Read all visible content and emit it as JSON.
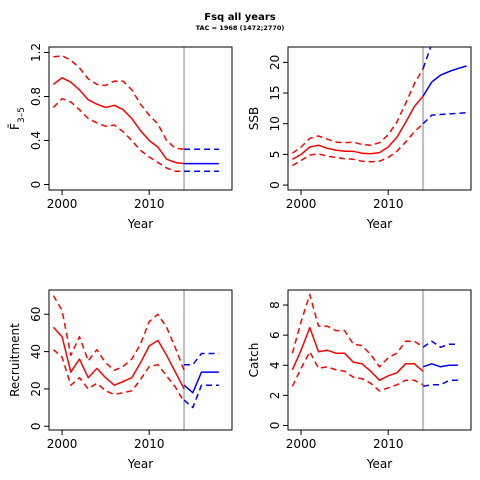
{
  "title": "Fsq all years",
  "subtitle": "TAC = 1968 (1472;2770)",
  "colors": {
    "historic": "#ff0000",
    "projection": "#0000ff",
    "marker": "#bebebe"
  },
  "chart_data": [
    {
      "type": "line",
      "ylabel": "F̄",
      "ylabel_sub": "3–5",
      "xlabel": "Year",
      "xlim": [
        1998.5,
        2019.5
      ],
      "ylim": [
        -0.05,
        1.25
      ],
      "xticks": [
        2000,
        2010
      ],
      "yticks": [
        0,
        0.4,
        0.8,
        1.2
      ],
      "ytick_labels": [
        "0",
        "0.4",
        "0.8",
        "1.2"
      ],
      "marker_year": 2014,
      "series": [
        {
          "role": "historic-median",
          "x": [
            1999,
            2000,
            2001,
            2002,
            2003,
            2004,
            2005,
            2006,
            2007,
            2008,
            2009,
            2010,
            2011,
            2012,
            2013,
            2014
          ],
          "values": [
            0.91,
            0.97,
            0.93,
            0.86,
            0.77,
            0.73,
            0.7,
            0.72,
            0.68,
            0.6,
            0.49,
            0.4,
            0.34,
            0.23,
            0.2,
            0.19
          ]
        },
        {
          "role": "historic-upper",
          "x": [
            1999,
            2000,
            2001,
            2002,
            2003,
            2004,
            2005,
            2006,
            2007,
            2008,
            2009,
            2010,
            2011,
            2012,
            2013,
            2014
          ],
          "values": [
            1.16,
            1.17,
            1.13,
            1.06,
            0.96,
            0.91,
            0.9,
            0.94,
            0.94,
            0.86,
            0.73,
            0.63,
            0.55,
            0.4,
            0.33,
            0.32
          ]
        },
        {
          "role": "historic-lower",
          "x": [
            1999,
            2000,
            2001,
            2002,
            2003,
            2004,
            2005,
            2006,
            2007,
            2008,
            2009,
            2010,
            2011,
            2012,
            2013,
            2014
          ],
          "values": [
            0.7,
            0.78,
            0.75,
            0.68,
            0.6,
            0.56,
            0.53,
            0.54,
            0.48,
            0.4,
            0.31,
            0.25,
            0.2,
            0.15,
            0.12,
            0.12
          ]
        },
        {
          "role": "projection-median",
          "x": [
            2014,
            2015,
            2016,
            2017,
            2018
          ],
          "values": [
            0.19,
            0.19,
            0.19,
            0.19,
            0.19
          ]
        },
        {
          "role": "projection-upper",
          "x": [
            2014,
            2015,
            2016,
            2017,
            2018
          ],
          "values": [
            0.32,
            0.32,
            0.32,
            0.32,
            0.32
          ]
        },
        {
          "role": "projection-lower",
          "x": [
            2014,
            2015,
            2016,
            2017,
            2018
          ],
          "values": [
            0.12,
            0.12,
            0.12,
            0.12,
            0.12
          ]
        }
      ]
    },
    {
      "type": "line",
      "ylabel": "SSB",
      "xlabel": "Year",
      "xlim": [
        1998.5,
        2019.5
      ],
      "ylim": [
        -0.8,
        22.5
      ],
      "xticks": [
        2000,
        2010
      ],
      "yticks": [
        0,
        5,
        10,
        15,
        20
      ],
      "ytick_labels": [
        "0",
        "5",
        "10",
        "15",
        "20"
      ],
      "marker_year": 2014,
      "series": [
        {
          "role": "historic-median",
          "x": [
            1999,
            2000,
            2001,
            2002,
            2003,
            2004,
            2005,
            2006,
            2007,
            2008,
            2009,
            2010,
            2011,
            2012,
            2013,
            2014
          ],
          "values": [
            4.2,
            5.0,
            6.2,
            6.5,
            6.0,
            5.7,
            5.5,
            5.5,
            5.2,
            5.1,
            5.3,
            6.2,
            7.8,
            10.2,
            12.8,
            14.5
          ]
        },
        {
          "role": "historic-upper",
          "x": [
            1999,
            2000,
            2001,
            2002,
            2003,
            2004,
            2005,
            2006,
            2007,
            2008,
            2009,
            2010,
            2011,
            2012,
            2013,
            2014
          ],
          "values": [
            5.2,
            6.2,
            7.6,
            8.0,
            7.5,
            7.0,
            6.9,
            7.0,
            6.6,
            6.5,
            6.9,
            8.2,
            10.3,
            13.3,
            16.5,
            19.0
          ]
        },
        {
          "role": "historic-lower",
          "x": [
            1999,
            2000,
            2001,
            2002,
            2003,
            2004,
            2005,
            2006,
            2007,
            2008,
            2009,
            2010,
            2011,
            2012,
            2013,
            2014
          ],
          "values": [
            3.2,
            4.0,
            4.9,
            5.1,
            4.7,
            4.5,
            4.3,
            4.2,
            3.9,
            3.8,
            3.9,
            4.5,
            5.5,
            7.0,
            8.7,
            10.0
          ]
        },
        {
          "role": "projection-median",
          "x": [
            2014,
            2015,
            2016,
            2017,
            2018,
            2019
          ],
          "values": [
            14.5,
            16.8,
            17.9,
            18.5,
            19.0,
            19.4
          ]
        },
        {
          "role": "projection-upper",
          "x": [
            2014,
            2015
          ],
          "values": [
            19.0,
            23.0
          ]
        },
        {
          "role": "projection-lower",
          "x": [
            2014,
            2015,
            2016,
            2017,
            2018,
            2019
          ],
          "values": [
            10.0,
            11.4,
            11.5,
            11.6,
            11.7,
            11.8
          ]
        }
      ]
    },
    {
      "type": "line",
      "ylabel": "Recruitment",
      "xlabel": "Year",
      "xlim": [
        1998.5,
        2019.5
      ],
      "ylim": [
        -2,
        73
      ],
      "xticks": [
        2000,
        2010
      ],
      "yticks": [
        0,
        20,
        40,
        60
      ],
      "ytick_labels": [
        "0",
        "20",
        "40",
        "60"
      ],
      "marker_year": 2014,
      "series": [
        {
          "role": "historic-median",
          "x": [
            1999,
            2000,
            2001,
            2002,
            2003,
            2004,
            2005,
            2006,
            2007,
            2008,
            2009,
            2010,
            2011,
            2012,
            2013,
            2014
          ],
          "values": [
            53,
            48,
            29,
            36,
            26,
            31,
            26,
            22,
            24,
            26,
            34,
            43,
            46,
            38,
            29,
            20
          ]
        },
        {
          "role": "historic-upper",
          "x": [
            1999,
            2000,
            2001,
            2002,
            2003,
            2004,
            2005,
            2006,
            2007,
            2008,
            2009,
            2010,
            2011,
            2012,
            2013,
            2014
          ],
          "values": [
            70,
            62,
            38,
            48,
            35,
            41,
            34,
            30,
            32,
            36,
            44,
            56,
            60,
            53,
            42,
            30
          ]
        },
        {
          "role": "historic-lower",
          "x": [
            1999,
            2000,
            2001,
            2002,
            2003,
            2004,
            2005,
            2006,
            2007,
            2008,
            2009,
            2010,
            2011,
            2012,
            2013,
            2014
          ],
          "values": [
            41,
            37,
            22,
            26,
            20,
            23,
            19,
            17,
            18,
            19,
            25,
            32,
            33,
            27,
            21,
            13
          ]
        },
        {
          "role": "projection-median",
          "x": [
            2014,
            2015,
            2016,
            2017,
            2018
          ],
          "values": [
            22,
            18,
            29,
            29,
            29
          ]
        },
        {
          "role": "projection-upper",
          "x": [
            2014,
            2015,
            2016,
            2017,
            2018
          ],
          "values": [
            33,
            33,
            39,
            39,
            39
          ]
        },
        {
          "role": "projection-lower",
          "x": [
            2014,
            2015,
            2016,
            2017,
            2018
          ],
          "values": [
            14,
            10,
            22,
            22,
            22
          ]
        }
      ]
    },
    {
      "type": "line",
      "ylabel": "Catch",
      "xlabel": "Year",
      "xlim": [
        1998.5,
        2019.5
      ],
      "ylim": [
        -0.3,
        9.0
      ],
      "xticks": [
        2000,
        2010
      ],
      "yticks": [
        0,
        2,
        4,
        6,
        8
      ],
      "ytick_labels": [
        "0",
        "2",
        "4",
        "6",
        "8"
      ],
      "marker_year": 2014,
      "series": [
        {
          "role": "historic-median",
          "x": [
            1999,
            2000,
            2001,
            2002,
            2003,
            2004,
            2005,
            2006,
            2007,
            2008,
            2009,
            2010,
            2011,
            2012,
            2013,
            2014
          ],
          "values": [
            3.7,
            5.0,
            6.5,
            4.9,
            5.0,
            4.8,
            4.8,
            4.2,
            4.1,
            3.6,
            3.0,
            3.3,
            3.5,
            4.1,
            4.1,
            3.6
          ]
        },
        {
          "role": "historic-upper",
          "x": [
            1999,
            2000,
            2001,
            2002,
            2003,
            2004,
            2005,
            2006,
            2007,
            2008,
            2009,
            2010,
            2011,
            2012,
            2013,
            2014
          ],
          "values": [
            4.8,
            6.9,
            8.7,
            6.6,
            6.6,
            6.3,
            6.3,
            5.4,
            5.3,
            4.7,
            3.9,
            4.5,
            4.8,
            5.6,
            5.6,
            5.2
          ]
        },
        {
          "role": "historic-lower",
          "x": [
            1999,
            2000,
            2001,
            2002,
            2003,
            2004,
            2005,
            2006,
            2007,
            2008,
            2009,
            2010,
            2011,
            2012,
            2013,
            2014
          ],
          "values": [
            2.6,
            3.8,
            4.9,
            3.8,
            3.9,
            3.7,
            3.6,
            3.2,
            3.1,
            2.8,
            2.3,
            2.5,
            2.7,
            3.0,
            3.0,
            2.7
          ]
        },
        {
          "role": "projection-median",
          "x": [
            2014,
            2015,
            2016,
            2017,
            2018
          ],
          "values": [
            3.9,
            4.1,
            3.9,
            4.0,
            4.0
          ]
        },
        {
          "role": "projection-upper",
          "x": [
            2014,
            2015,
            2016,
            2017,
            2018
          ],
          "values": [
            5.2,
            5.6,
            5.2,
            5.4,
            5.4
          ]
        },
        {
          "role": "projection-lower",
          "x": [
            2014,
            2015,
            2016,
            2017,
            2018
          ],
          "values": [
            2.6,
            2.7,
            2.7,
            3.0,
            3.0
          ]
        }
      ]
    }
  ]
}
